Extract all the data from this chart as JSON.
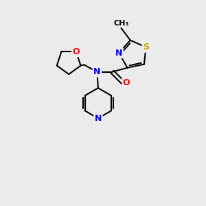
{
  "background_color": "#ebebeb",
  "bond_color": "#000000",
  "atom_colors": {
    "N": "#0000ff",
    "O": "#ff0000",
    "S": "#ccaa00",
    "C": "#000000"
  },
  "font_size": 9
}
